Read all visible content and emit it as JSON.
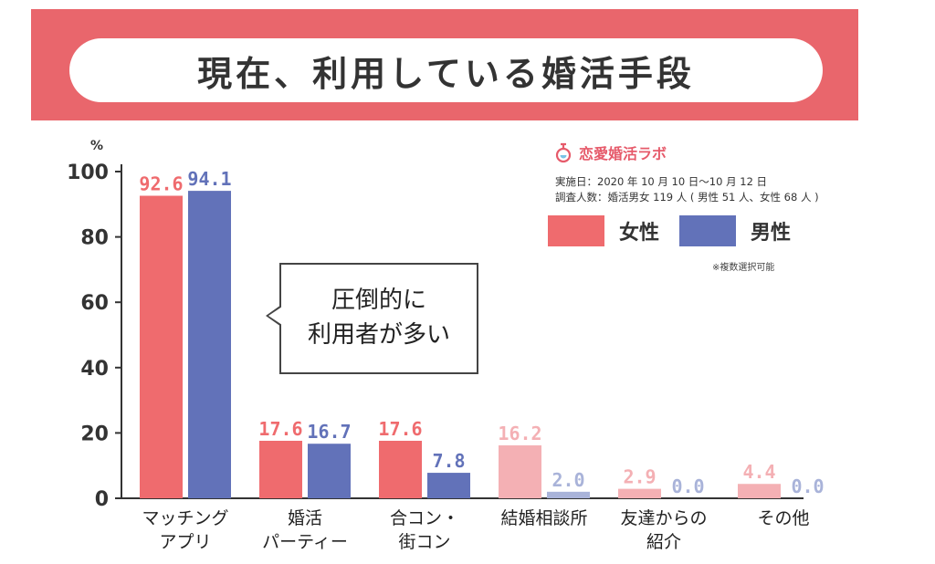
{
  "title": "現在、利用している婚活手段",
  "brand": {
    "name": "恋愛婚活ラボ"
  },
  "survey": {
    "period": "実施日：2020 年 10 月 10 日〜10 月 12 日",
    "respondents": "調査人数：婚活男女 119 人 ( 男性 51 人、女性 68 人 )"
  },
  "note": "※複数選択可能",
  "callout": {
    "line1": "圧倒的に",
    "line2": "利用者が多い"
  },
  "colors": {
    "banner": "#e9666c",
    "female": "#ef6b6e",
    "male": "#6272b9",
    "female_light": "#f4b0b4",
    "male_light": "#a9b3d9"
  },
  "chart_data": {
    "type": "bar",
    "unit_label": "%",
    "categories": [
      [
        "マッチング",
        "アプリ"
      ],
      [
        "婚活",
        "パーティー"
      ],
      [
        "合コン・",
        "街コン"
      ],
      [
        "結婚相談所"
      ],
      [
        "友達からの",
        "紹介"
      ],
      [
        "その他"
      ]
    ],
    "series": [
      {
        "name": "女性",
        "values": [
          92.6,
          17.6,
          17.6,
          16.2,
          2.9,
          4.4
        ]
      },
      {
        "name": "男性",
        "values": [
          94.1,
          16.7,
          7.8,
          2.0,
          0.0,
          0.0
        ]
      }
    ],
    "ylim": [
      0,
      100
    ],
    "yticks": [
      0,
      20,
      40,
      60,
      80,
      100
    ],
    "highlighted_categories": 3,
    "legend": "top-right",
    "grid": false
  }
}
